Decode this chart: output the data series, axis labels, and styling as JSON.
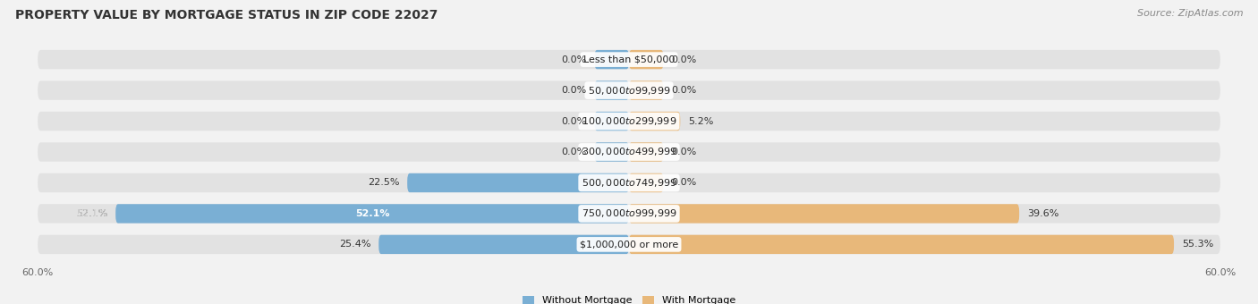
{
  "title": "PROPERTY VALUE BY MORTGAGE STATUS IN ZIP CODE 22027",
  "source": "Source: ZipAtlas.com",
  "categories": [
    "Less than $50,000",
    "$50,000 to $99,999",
    "$100,000 to $299,999",
    "$300,000 to $499,999",
    "$500,000 to $749,999",
    "$750,000 to $999,999",
    "$1,000,000 or more"
  ],
  "without_mortgage": [
    0.0,
    0.0,
    0.0,
    0.0,
    22.5,
    52.1,
    25.4
  ],
  "with_mortgage": [
    0.0,
    0.0,
    5.2,
    0.0,
    0.0,
    39.6,
    55.3
  ],
  "without_labels": [
    "0.0%",
    "0.0%",
    "0.0%",
    "0.0%",
    "22.5%",
    "52.1%",
    "25.4%"
  ],
  "with_labels": [
    "0.0%",
    "0.0%",
    "5.2%",
    "0.0%",
    "0.0%",
    "39.6%",
    "55.3%"
  ],
  "color_without": "#7aafd4",
  "color_with": "#e8b87a",
  "background_color": "#f2f2f2",
  "bar_background": "#e2e2e2",
  "xlim": 60.0,
  "stub_size": 3.5,
  "title_fontsize": 10,
  "source_fontsize": 8,
  "tick_fontsize": 8,
  "label_fontsize": 8,
  "category_fontsize": 8,
  "legend_fontsize": 8
}
